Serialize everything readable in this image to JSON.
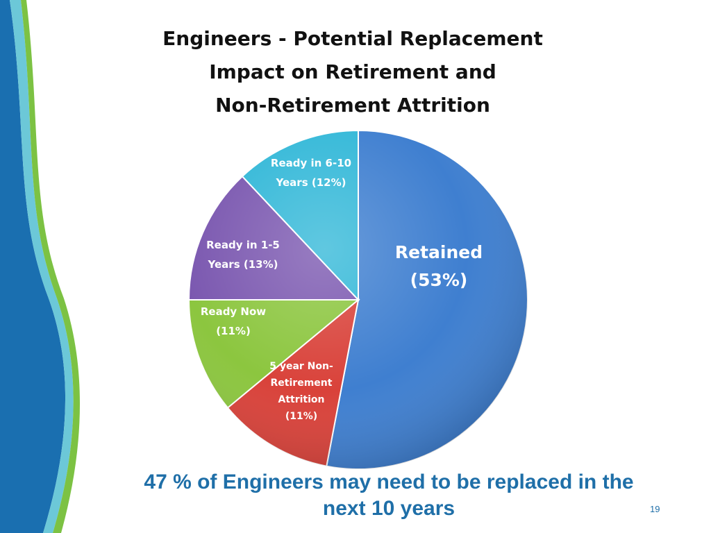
{
  "colors": {
    "accent_text": "#1f6fa8",
    "decor_dark": "#1a6fb0",
    "decor_light": "#6cc8d8",
    "decor_green": "#7cc243"
  },
  "slide": {
    "title_lines": [
      "Engineers  - Potential Replacement",
      "Impact on Retirement and",
      "Non-Retirement Attrition"
    ],
    "footer_lines": [
      "47 % of Engineers may need to be replaced in the",
      "next 10 years"
    ],
    "page_number": "19"
  },
  "chart_data": {
    "type": "pie",
    "title": "Engineers  - Potential Replacement Impact on Retirement and Non-Retirement Attrition",
    "slices": [
      {
        "label": "Retained (53%)",
        "label_lines": [
          "Retained",
          "(53%)"
        ],
        "value": 53,
        "color": "#3f7fd0"
      },
      {
        "label": "5 year Non-Retirement Attrition (11%)",
        "label_lines": [
          "5 year Non-",
          "Retirement",
          "Attrition",
          "(11%)"
        ],
        "value": 11,
        "color": "#d9423a"
      },
      {
        "label": "Ready Now (11%)",
        "label_lines": [
          "Ready Now",
          "(11%)"
        ],
        "value": 11,
        "color": "#8cc63f"
      },
      {
        "label": "Ready in 1-5 Years (13%)",
        "label_lines": [
          "Ready in 1-5",
          "Years (13%)"
        ],
        "value": 13,
        "color": "#7b58b0"
      },
      {
        "label": "Ready in 6-10 Years (12%)",
        "label_lines": [
          "Ready in 6-10",
          "Years (12%)"
        ],
        "value": 12,
        "color": "#33b8d8"
      }
    ]
  }
}
